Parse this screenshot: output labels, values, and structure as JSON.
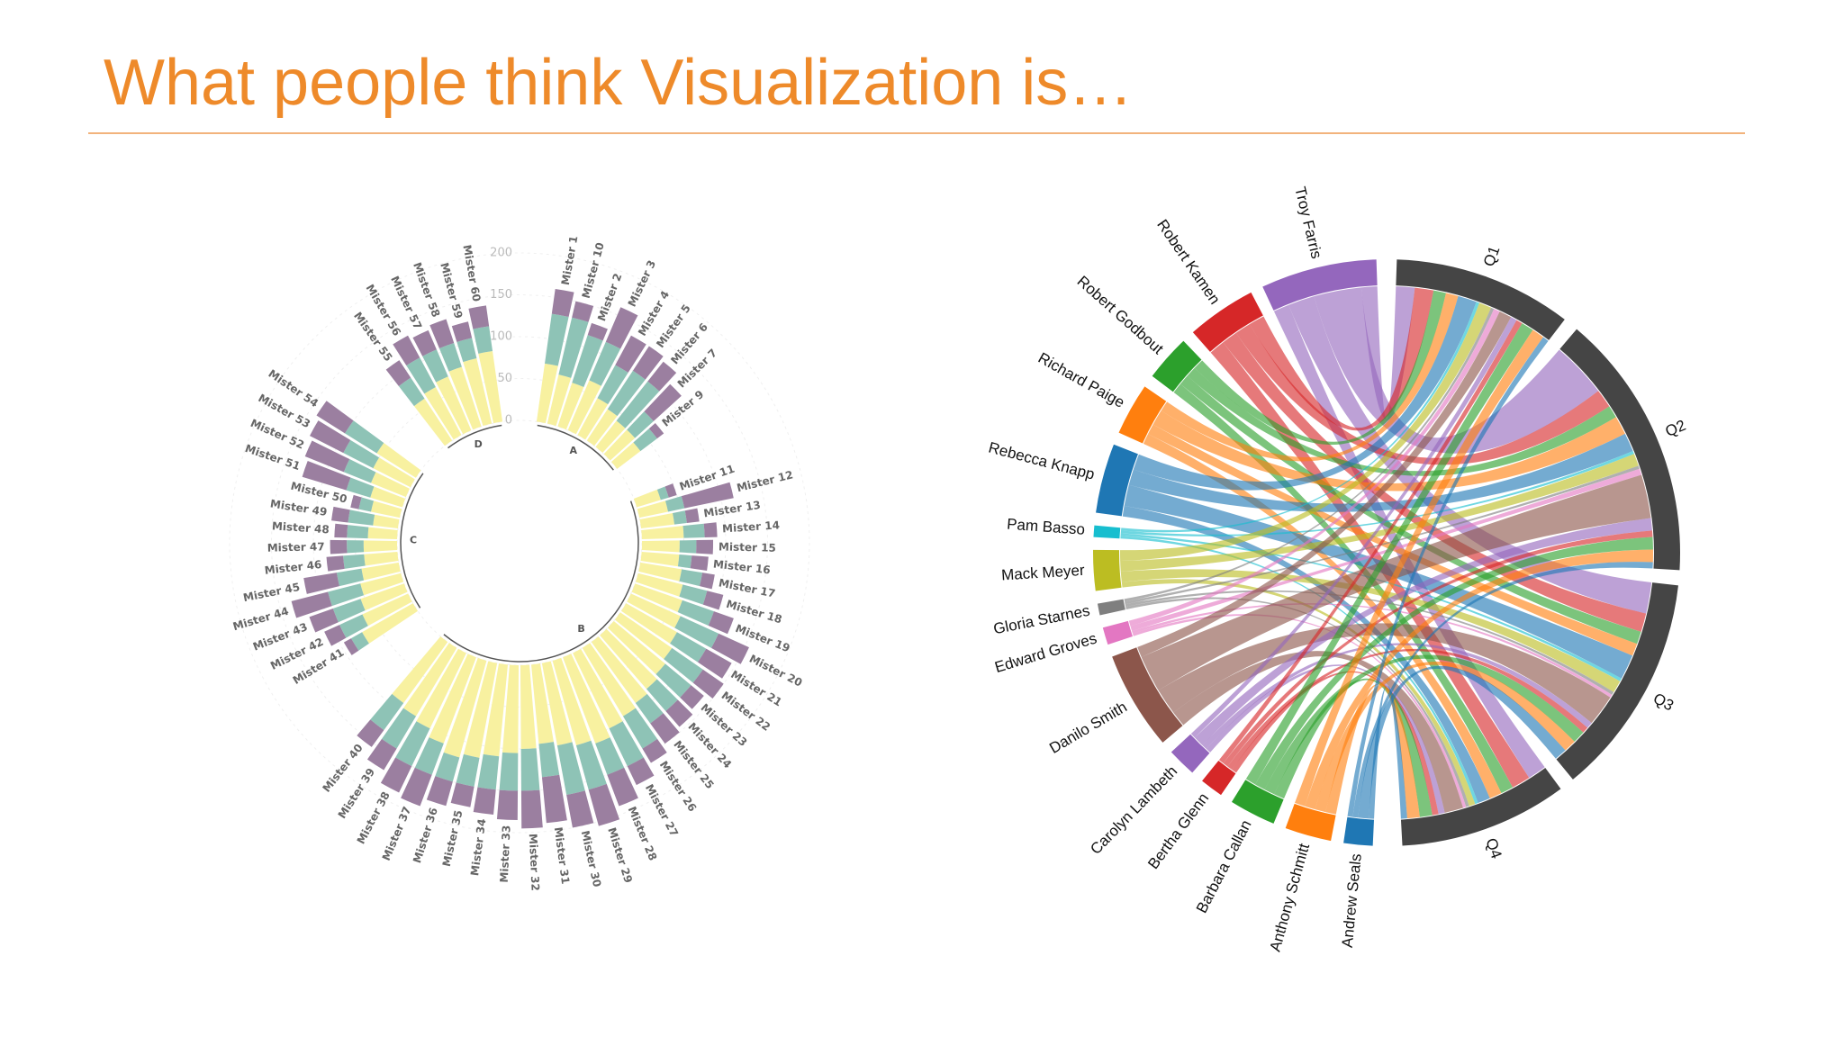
{
  "title": "What people think Visualization is…",
  "chart_data": [
    {
      "type": "radial_stacked_bar",
      "groups": [
        {
          "label": "A",
          "categories": [
            "Mister 1",
            "Mister 10",
            "Mister 2",
            "Mister 3",
            "Mister 4",
            "Mister 5",
            "Mister 6",
            "Mister 7",
            "Mister 9"
          ]
        },
        {
          "label": "B",
          "categories": [
            "Mister 11",
            "Mister 12",
            "Mister 13",
            "Mister 14",
            "Mister 15",
            "Mister 16",
            "Mister 17",
            "Mister 18",
            "Mister 19",
            "Mister 20",
            "Mister 21",
            "Mister 22",
            "Mister 23",
            "Mister 24",
            "Mister 25",
            "Mister 26",
            "Mister 27",
            "Mister 28",
            "Mister 29",
            "Mister 30",
            "Mister 31",
            "Mister 32",
            "Mister 33",
            "Mister 34",
            "Mister 35",
            "Mister 36",
            "Mister 37",
            "Mister 38",
            "Mister 39",
            "Mister 40"
          ]
        },
        {
          "label": "C",
          "categories": [
            "Mister 41",
            "Mister 42",
            "Mister 43",
            "Mister 44",
            "Mister 45",
            "Mister 46",
            "Mister 47",
            "Mister 48",
            "Mister 49",
            "Mister 50",
            "Mister 51",
            "Mister 52",
            "Mister 53",
            "Mister 54"
          ]
        },
        {
          "label": "D",
          "categories": [
            "Mister 55",
            "Mister 56",
            "Mister 57",
            "Mister 58",
            "Mister 59",
            "Mister 60"
          ]
        }
      ],
      "series": [
        {
          "color": "#f8f1a0",
          "values": [
            70,
            60,
            55,
            65,
            50,
            45,
            40,
            40,
            35,
            30,
            35,
            40,
            50,
            45,
            45,
            50,
            55,
            60,
            65,
            70,
            75,
            80,
            85,
            90,
            95,
            100,
            110,
            105,
            100,
            95,
            100,
            105,
            110,
            115,
            120,
            110,
            100,
            95,
            90,
            70,
            60,
            55,
            50,
            45,
            40,
            40,
            35,
            30,
            35,
            40,
            45,
            50,
            55,
            60,
            65,
            70,
            75,
            80,
            85
          ]
        },
        {
          "color": "#8ec3b6",
          "values": [
            60,
            70,
            60,
            50,
            45,
            55,
            60,
            30,
            25,
            10,
            20,
            15,
            25,
            20,
            15,
            25,
            30,
            40,
            50,
            40,
            45,
            40,
            35,
            30,
            45,
            50,
            40,
            55,
            60,
            40,
            50,
            45,
            40,
            35,
            30,
            40,
            50,
            45,
            40,
            15,
            30,
            35,
            40,
            30,
            25,
            20,
            25,
            30,
            15,
            30,
            35,
            40,
            45,
            30,
            40,
            35,
            30,
            25,
            30
          ]
        },
        {
          "color": "#9b7fa0",
          "values": [
            30,
            20,
            15,
            45,
            40,
            35,
            30,
            45,
            10,
            10,
            60,
            15,
            15,
            20,
            20,
            15,
            20,
            25,
            40,
            35,
            30,
            20,
            25,
            30,
            20,
            25,
            40,
            45,
            40,
            55,
            45,
            35,
            30,
            25,
            30,
            40,
            35,
            30,
            25,
            10,
            20,
            30,
            45,
            40,
            20,
            20,
            15,
            20,
            10,
            55,
            50,
            45,
            40,
            25,
            30,
            25,
            30,
            20,
            25
          ]
        }
      ],
      "ylim": [
        0,
        200
      ],
      "yticks": [
        0,
        50,
        100,
        150,
        200
      ]
    },
    {
      "type": "chord",
      "sources": [
        "Troy Farris",
        "Robert Kamen",
        "Robert Godbout",
        "Richard Paige",
        "Rebecca Knapp",
        "Pam Basso",
        "Mack Meyer",
        "Gloria Starnes",
        "Edward Groves",
        "Danilo Smith",
        "Carolyn Lambeth",
        "Bertha Glenn",
        "Barbara Callan",
        "Anthony Schmitt",
        "Andrew Seals"
      ],
      "colors": [
        "#9467bd",
        "#d62728",
        "#2ca02c",
        "#ff7f0e",
        "#1f77b4",
        "#17becf",
        "#bcbd22",
        "#7f7f7f",
        "#e377c2",
        "#8c564b",
        "#9467bd",
        "#d62728",
        "#2ca02c",
        "#ff7f0e",
        "#1f77b4"
      ],
      "targets": [
        "Q1",
        "Q2",
        "Q3",
        "Q4"
      ],
      "target_color": "#454545",
      "matrix": [
        [
          3,
          9,
          5,
          3
        ],
        [
          3,
          3,
          3,
          3
        ],
        [
          2,
          2,
          2,
          2
        ],
        [
          2,
          3,
          2,
          2
        ],
        [
          3,
          3,
          4,
          2
        ],
        [
          0.5,
          0.5,
          0.5,
          0.5
        ],
        [
          2,
          2,
          2,
          1
        ],
        [
          0.5,
          0.5,
          0.5,
          0.5
        ],
        [
          1,
          1,
          0.5,
          0.5
        ],
        [
          2,
          7,
          5,
          3
        ],
        [
          1,
          2,
          1,
          1
        ],
        [
          1,
          1,
          1,
          1
        ],
        [
          2,
          2,
          2,
          2
        ],
        [
          2,
          2,
          2,
          2
        ],
        [
          1,
          1,
          2,
          1
        ]
      ]
    }
  ]
}
